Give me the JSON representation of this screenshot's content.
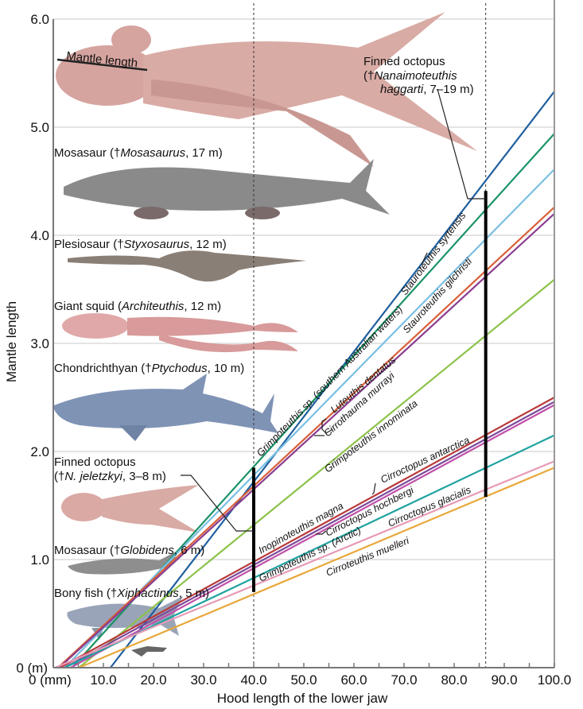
{
  "chart_data": {
    "type": "line",
    "xlabel": "Hood length of the lower jaw",
    "ylabel": "Mantle length",
    "xlim": [
      0,
      100
    ],
    "ylim": [
      0,
      6
    ],
    "x_ticks": [
      "0 (mm)",
      "10.0",
      "20.0",
      "30.0",
      "40.0",
      "50.0",
      "60.0",
      "70.0",
      "80.0",
      "90.0",
      "100.0"
    ],
    "y_ticks": [
      "0 (m)",
      "1.0",
      "2.0",
      "3.0",
      "4.0",
      "5.0",
      "6.0"
    ],
    "grid": "horizontal",
    "series": [
      {
        "name": "Stauroteuthis syrtensis",
        "color": "#1f5f9e",
        "points": [
          [
            40,
            1.72
          ],
          [
            100,
            5.33
          ]
        ]
      },
      {
        "name": "Grimpoteuthis sp. (southern Australian waters)",
        "color": "#1a9466",
        "points": [
          [
            40,
            1.86
          ],
          [
            100,
            4.94
          ]
        ]
      },
      {
        "name": "Luteuthis dentatus",
        "color": "#79bfe3",
        "points": [
          [
            40,
            1.78
          ],
          [
            100,
            4.61
          ]
        ]
      },
      {
        "name": "Stauroteuthis gilchristi",
        "color": "#d8603a",
        "points": [
          [
            40,
            1.68
          ],
          [
            100,
            4.26
          ]
        ]
      },
      {
        "name": "Cirrothauma murrayi",
        "color": "#8a3d8f",
        "points": [
          [
            40,
            1.65
          ],
          [
            100,
            4.2
          ]
        ]
      },
      {
        "name": "Grimpoteuthis innominata",
        "color": "#8cc24a",
        "points": [
          [
            40,
            1.32
          ],
          [
            100,
            3.59
          ]
        ]
      },
      {
        "name": "Cirroctopus antarctica",
        "color": "#b83a3a",
        "points": [
          [
            40,
            0.98
          ],
          [
            100,
            2.5
          ]
        ]
      },
      {
        "name": "Inopinoteuthis magna",
        "color": "#7a4a9a",
        "points": [
          [
            40,
            0.95
          ],
          [
            100,
            2.46
          ]
        ]
      },
      {
        "name": "Cirroctopus hochbergi",
        "color": "#c050a8",
        "points": [
          [
            40,
            0.92
          ],
          [
            100,
            2.43
          ]
        ]
      },
      {
        "name": "Grimpoteuthis sp. (Arctic)",
        "color": "#1ea3a0",
        "points": [
          [
            40,
            0.83
          ],
          [
            100,
            2.15
          ]
        ]
      },
      {
        "name": "Cirroctopus glacialis",
        "color": "#e79ab5",
        "points": [
          [
            40,
            0.76
          ],
          [
            100,
            1.91
          ]
        ]
      },
      {
        "name": "Cirroteuthis muelleri",
        "color": "#e8a83a",
        "points": [
          [
            40,
            0.68
          ],
          [
            100,
            1.85
          ]
        ]
      }
    ],
    "reference_lines_x": [
      40,
      86.3
    ],
    "range_bars": [
      {
        "x": 40,
        "y": [
          0.7,
          1.85
        ],
        "label": "Finned octopus (†N. jeletzkyi, 3–8 m)"
      },
      {
        "x": 86.3,
        "y": [
          1.58,
          4.41
        ],
        "label": "Finned octopus (†Nanaimoteuthis haggarti, 7–19 m)"
      }
    ]
  },
  "annotations": {
    "mantle_length": "Mantle length",
    "haggarti_l1": "Finned octopus",
    "haggarti_l2a": "(†",
    "haggarti_l2b": "Nanaimoteuthis",
    "haggarti_l3a": "haggarti",
    "haggarti_l3b": ", 7–19 m)",
    "mosasaurus_a": "Mosasaur (†",
    "mosasaurus_b": "Mosasaurus",
    "mosasaurus_c": ", 17 m)",
    "styx_a": "Plesiosaur (†",
    "styx_b": "Styxosaurus",
    "styx_c": ", 12 m)",
    "squid_a": "Giant squid (",
    "squid_b": "Architeuthis",
    "squid_c": ", 12 m)",
    "ptycho_a": "Chondrichthyan (†",
    "ptycho_b": "Ptychodus",
    "ptycho_c": ", 10 m)",
    "jel_l1": "Finned octopus",
    "jel_l2a": "(†",
    "jel_l2b": "N. jeletzkyi",
    "jel_l2c": ", 3–8 m)",
    "glob_a": "Mosasaur (†",
    "glob_b": "Globidens",
    "glob_c": ", 6 m)",
    "xiph_a": "Bony fish (†",
    "xiph_b": "Xiphactinus",
    "xiph_c": ", 5 m)"
  }
}
